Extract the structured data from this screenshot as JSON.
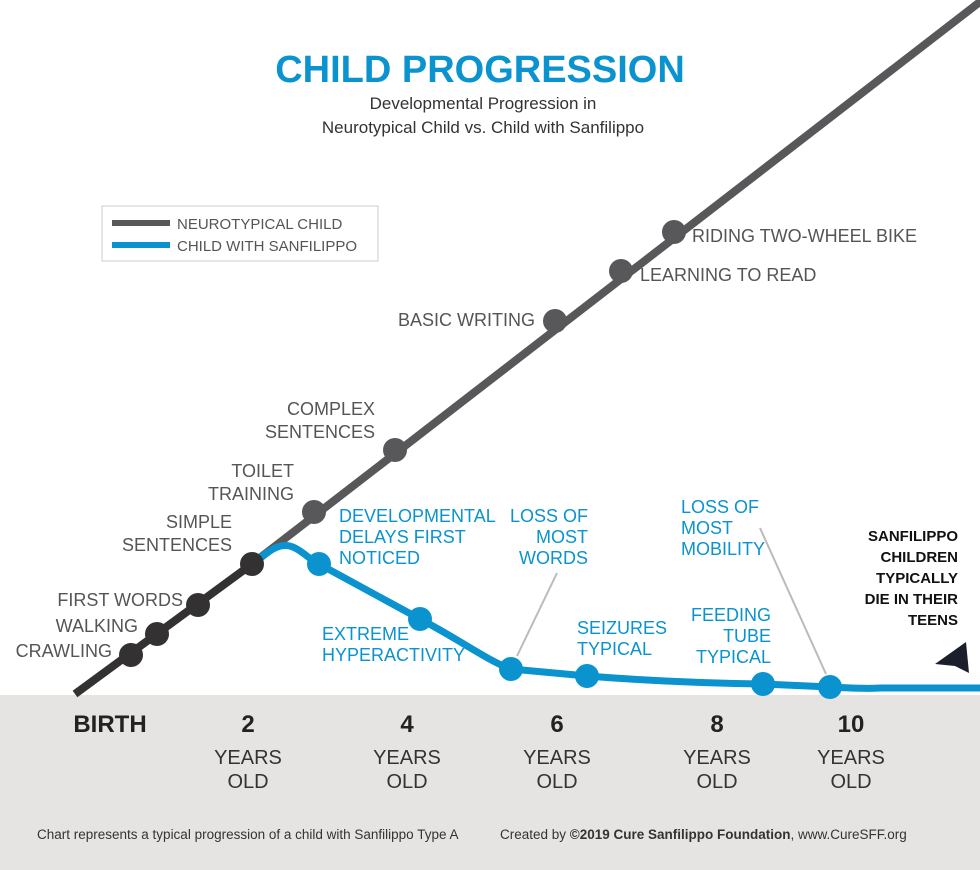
{
  "chart_data": {
    "type": "line",
    "title": "CHILD PROGRESSION",
    "subtitle": [
      "Developmental Progression in",
      "Neurotypical Child vs. Child with Sanfilippo"
    ],
    "xlabel": "",
    "ylabel": "",
    "x_ticks": [
      {
        "main": "BIRTH",
        "sub": []
      },
      {
        "main": "2",
        "sub": [
          "YEARS",
          "OLD"
        ]
      },
      {
        "main": "4",
        "sub": [
          "YEARS",
          "OLD"
        ]
      },
      {
        "main": "6",
        "sub": [
          "YEARS",
          "OLD"
        ]
      },
      {
        "main": "8",
        "sub": [
          "YEARS",
          "OLD"
        ]
      },
      {
        "main": "10",
        "sub": [
          "YEARS",
          "OLD"
        ]
      }
    ],
    "xlim_years": [
      0,
      12
    ],
    "legend": {
      "placement": "top-left",
      "entries": [
        {
          "name": "NEUROTYPICAL CHILD",
          "color": "#58585a"
        },
        {
          "name": "CHILD WITH SANFILIPPO",
          "color": "#0a93cf"
        }
      ]
    },
    "series": [
      {
        "name": "NEUROTYPICAL CHILD",
        "milestones": [
          {
            "label": [
              "CRAWLING"
            ],
            "age_years": 0.3
          },
          {
            "label": [
              "WALKING"
            ],
            "age_years": 0.7
          },
          {
            "label": [
              "FIRST WORDS"
            ],
            "age_years": 1.3
          },
          {
            "label": [
              "SIMPLE",
              "SENTENCES"
            ],
            "age_years": 2.0
          },
          {
            "label": [
              "TOILET",
              "TRAINING"
            ],
            "age_years": 2.8
          },
          {
            "label": [
              "COMPLEX",
              "SENTENCES"
            ],
            "age_years": 3.8
          },
          {
            "label": [
              "BASIC WRITING"
            ],
            "age_years": 6.0
          },
          {
            "label": [
              "LEARNING TO READ"
            ],
            "age_years": 6.8
          },
          {
            "label": [
              "RIDING TWO-WHEEL BIKE"
            ],
            "age_years": 7.5
          }
        ]
      },
      {
        "name": "CHILD WITH SANFILIPPO",
        "milestones": [
          {
            "label": [
              "DEVELOPMENTAL",
              "DELAYS FIRST",
              "NOTICED"
            ],
            "age_years": 2.9
          },
          {
            "label": [
              "EXTREME",
              "HYPERACTIVITY"
            ],
            "age_years": 4.2
          },
          {
            "label": [
              "LOSS OF",
              "MOST",
              "WORDS"
            ],
            "age_years": 5.7
          },
          {
            "label": [
              "SEIZURES",
              "TYPICAL"
            ],
            "age_years": 6.4
          },
          {
            "label": [
              "FEEDING",
              "TUBE",
              "TYPICAL"
            ],
            "age_years": 8.6
          },
          {
            "label": [
              "LOSS OF",
              "MOST",
              "MOBILITY"
            ],
            "age_years": 9.8
          }
        ]
      }
    ],
    "annotation": [
      "SANFILIPPO",
      "CHILDREN",
      "TYPICALLY",
      "DIE IN THEIR",
      "TEENS"
    ],
    "colors": {
      "title": "#0a93cf",
      "sanfilippo": "#0a93cf",
      "neurotypical": "#58585a",
      "early": "#333132",
      "band": "#e6e4e3"
    }
  },
  "footer": {
    "note": "Chart represents a typical progression of a child with Sanfilippo Type A",
    "created_by": "Created by ",
    "copyright": "©2019 Cure Sanfilippo Foundation",
    "site": ", www.CureSFF.org"
  }
}
